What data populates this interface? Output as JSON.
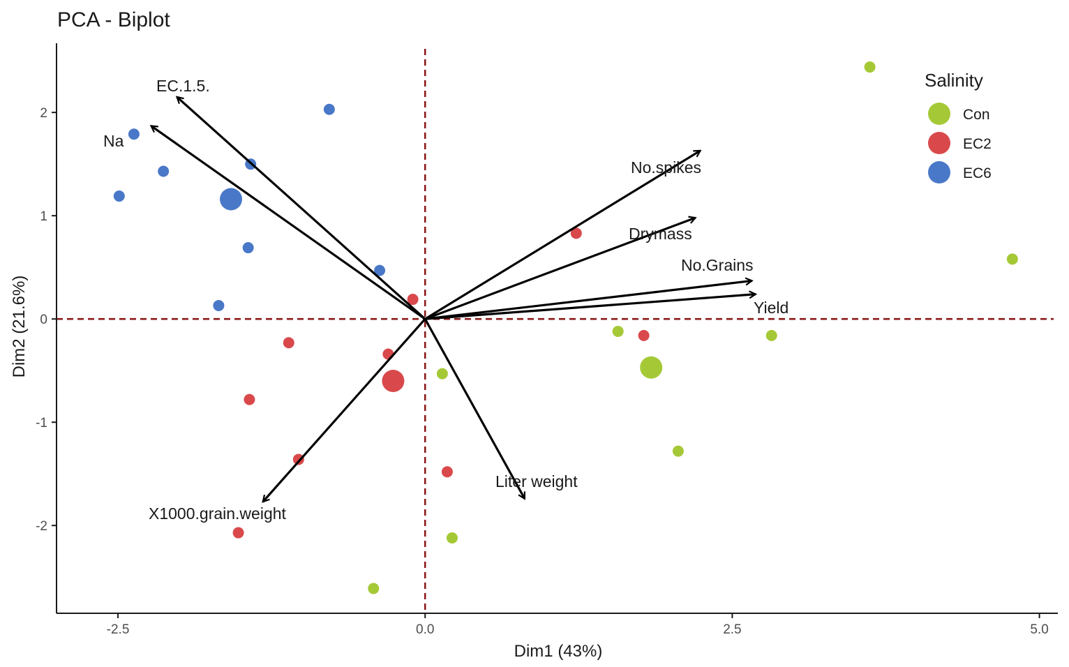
{
  "chart_data": {
    "type": "scatter",
    "title": "PCA - Biplot",
    "xlabel": "Dim1 (43%)",
    "ylabel": "Dim2 (21.6%)",
    "xlim": [
      -3.0,
      5.15
    ],
    "ylim": [
      -2.85,
      2.67
    ],
    "x_ticks": [
      -2.5,
      0.0,
      2.5,
      5.0
    ],
    "x_tick_labels": [
      "-2.5",
      "0.0",
      "2.5",
      "5.0"
    ],
    "y_ticks": [
      -2,
      -1,
      0,
      1,
      2
    ],
    "y_tick_labels": [
      "-2",
      "-1",
      "0",
      "1",
      "2"
    ],
    "grid": false,
    "reference_lines": {
      "x": 0,
      "y": 0,
      "color": "#8b1a1a",
      "style": "dashed"
    },
    "legend": {
      "title": "Salinity",
      "position": "top-right",
      "entries": [
        {
          "name": "Con",
          "color": "#a5c936"
        },
        {
          "name": "EC2",
          "color": "#d9494b"
        },
        {
          "name": "EC6",
          "color": "#4a78c8"
        }
      ]
    },
    "series": [
      {
        "name": "Con",
        "color": "#a5c936",
        "points": [
          {
            "x": 3.62,
            "y": 2.44
          },
          {
            "x": 4.78,
            "y": 0.58
          },
          {
            "x": 1.57,
            "y": -0.12
          },
          {
            "x": 2.82,
            "y": -0.16
          },
          {
            "x": 0.14,
            "y": -0.53
          },
          {
            "x": 2.06,
            "y": -1.28
          },
          {
            "x": 0.22,
            "y": -2.12
          },
          {
            "x": -0.42,
            "y": -2.61
          }
        ],
        "centroid": {
          "x": 1.84,
          "y": -0.47
        }
      },
      {
        "name": "EC2",
        "color": "#d9494b",
        "points": [
          {
            "x": 1.23,
            "y": 0.83
          },
          {
            "x": -0.1,
            "y": 0.19
          },
          {
            "x": 1.78,
            "y": -0.16
          },
          {
            "x": -1.11,
            "y": -0.23
          },
          {
            "x": -0.3,
            "y": -0.34
          },
          {
            "x": -1.43,
            "y": -0.78
          },
          {
            "x": -1.03,
            "y": -1.36
          },
          {
            "x": 0.18,
            "y": -1.48
          },
          {
            "x": -1.52,
            "y": -2.07
          }
        ],
        "centroid": {
          "x": -0.26,
          "y": -0.6
        }
      },
      {
        "name": "EC6",
        "color": "#4a78c8",
        "points": [
          {
            "x": -0.78,
            "y": 2.03
          },
          {
            "x": -2.37,
            "y": 1.79
          },
          {
            "x": -1.42,
            "y": 1.5
          },
          {
            "x": -2.13,
            "y": 1.43
          },
          {
            "x": -2.49,
            "y": 1.19
          },
          {
            "x": -1.44,
            "y": 0.69
          },
          {
            "x": -0.37,
            "y": 0.47
          },
          {
            "x": -1.68,
            "y": 0.13
          }
        ],
        "centroid": {
          "x": -1.58,
          "y": 1.16
        }
      }
    ],
    "variables": [
      {
        "name": "EC.1.5.",
        "x": -2.02,
        "y": 2.15
      },
      {
        "name": "Na",
        "x": -2.23,
        "y": 1.87
      },
      {
        "name": "No.spikes",
        "x": 2.24,
        "y": 1.63
      },
      {
        "name": "Drymass",
        "x": 2.2,
        "y": 0.98
      },
      {
        "name": "No.Grains",
        "x": 2.66,
        "y": 0.37
      },
      {
        "name": "Yield",
        "x": 2.69,
        "y": 0.24
      },
      {
        "name": "Liter weight",
        "x": 0.81,
        "y": -1.74
      },
      {
        "name": "X1000.grain.weight",
        "x": -1.32,
        "y": -1.77
      }
    ]
  }
}
